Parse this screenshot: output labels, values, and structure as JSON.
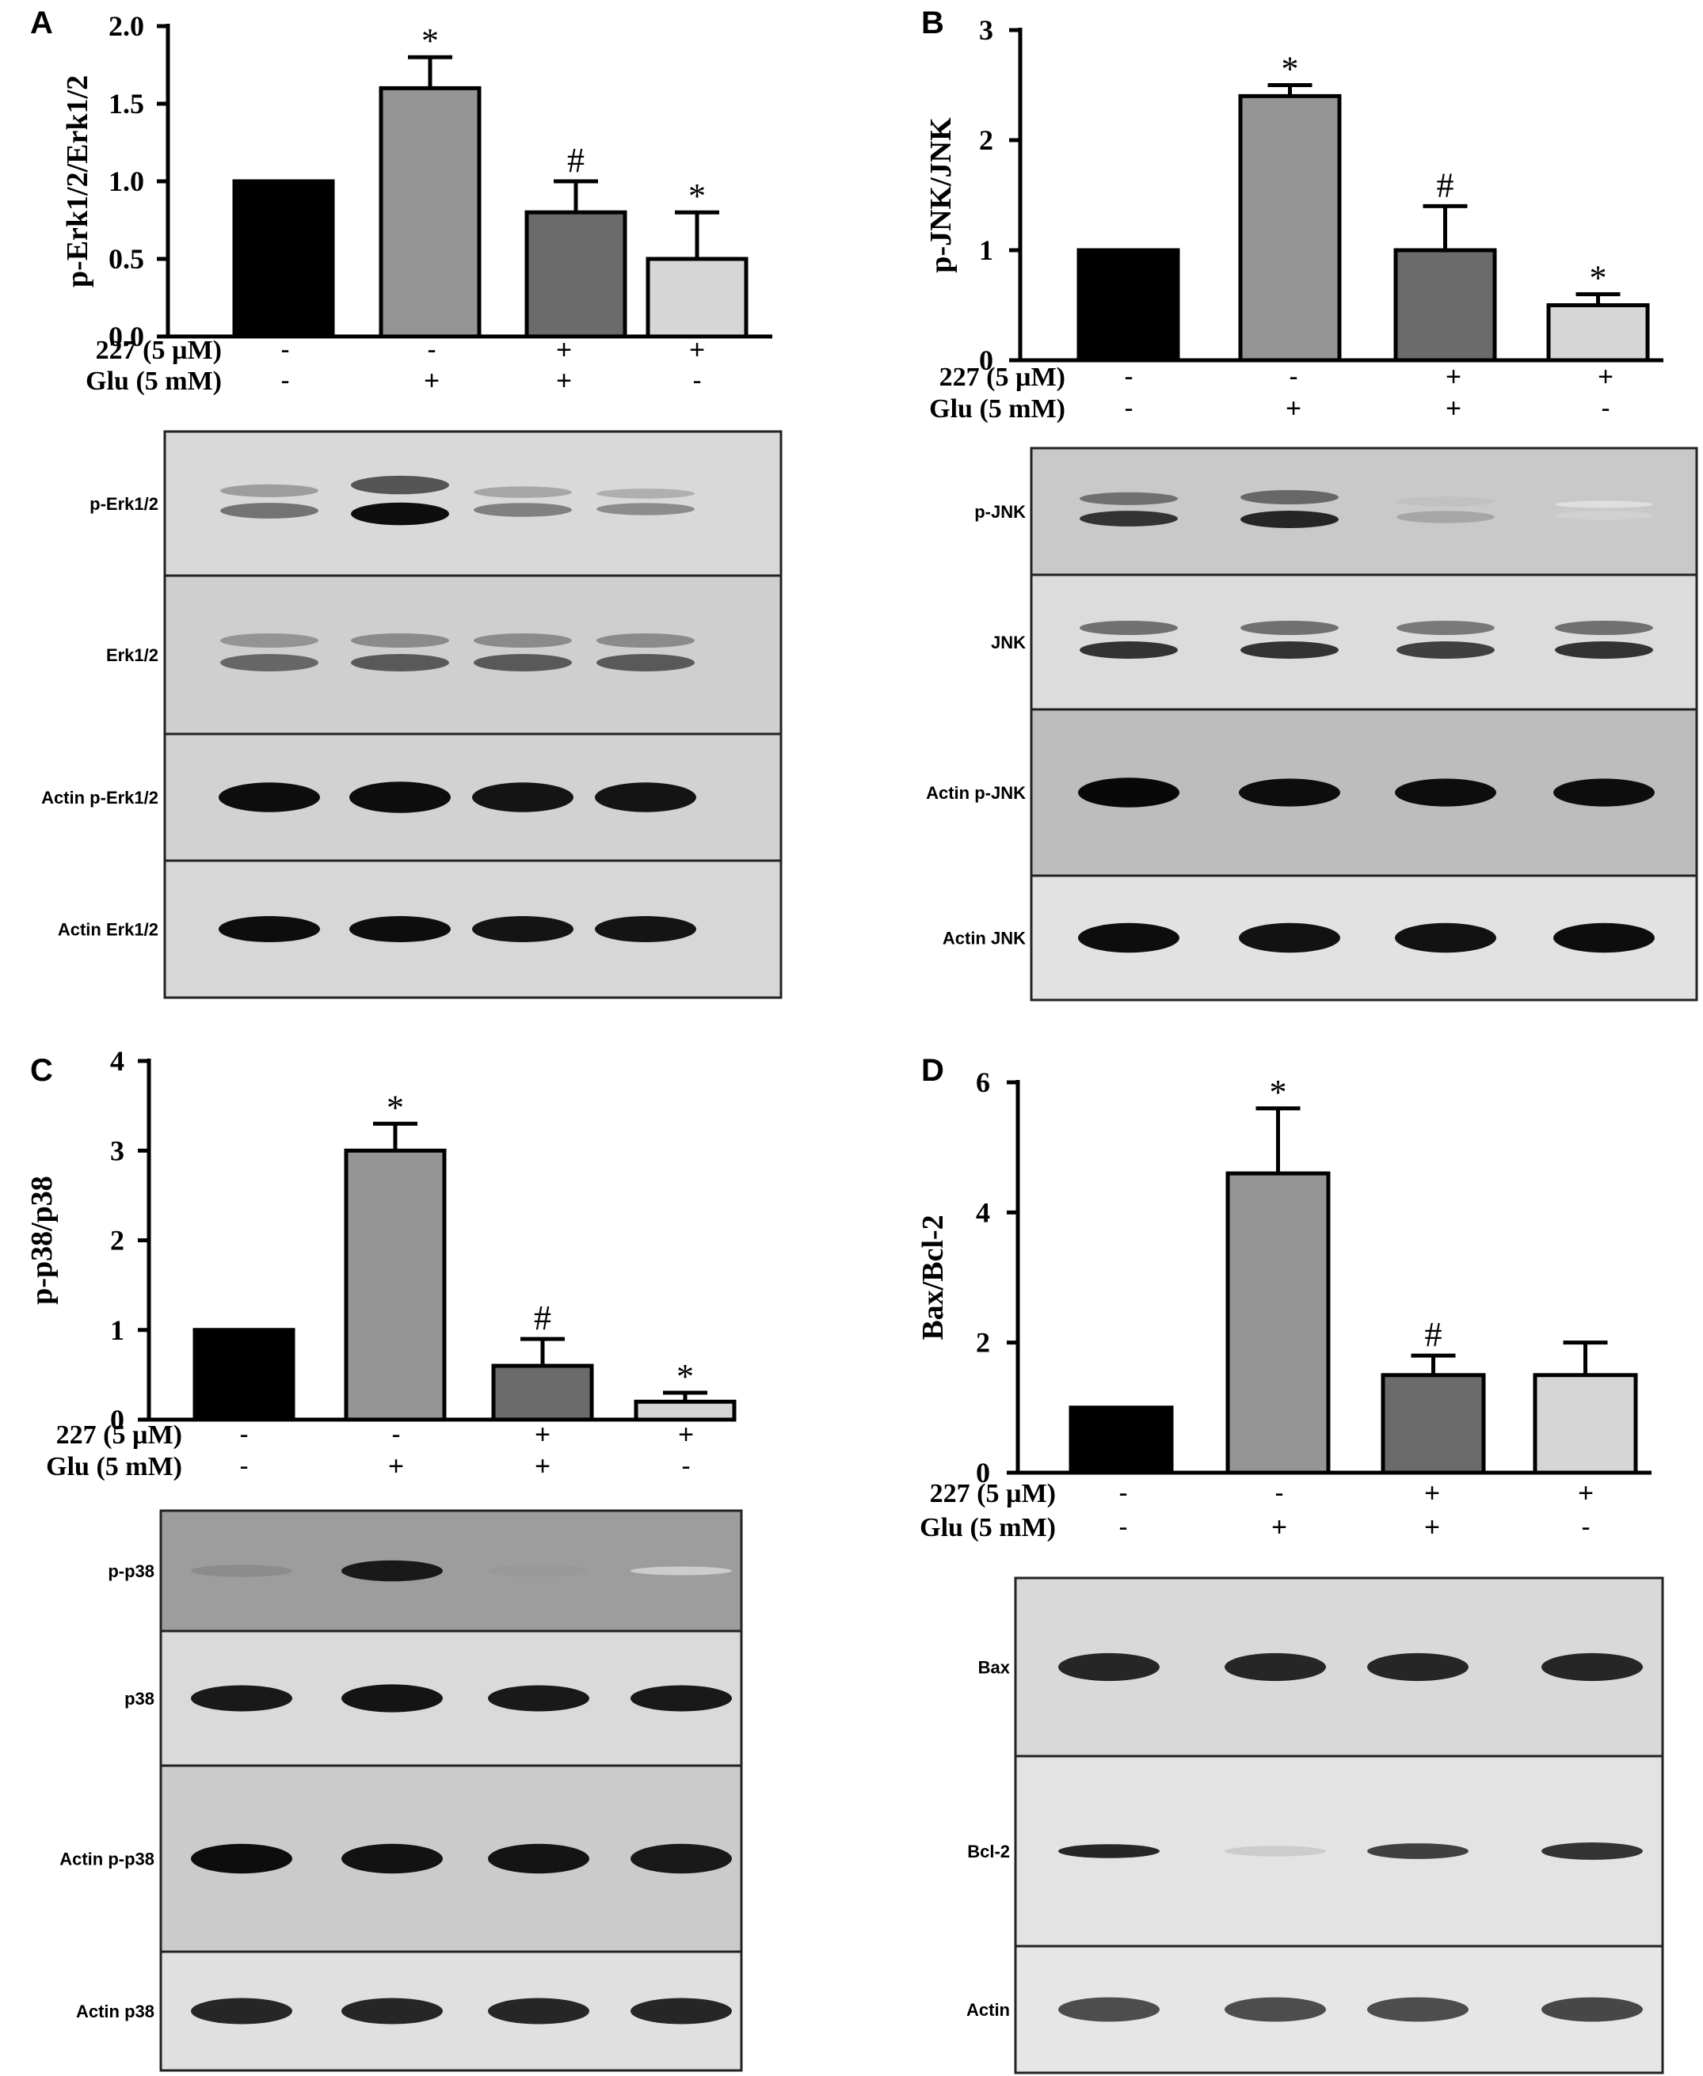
{
  "chart_data": [
    {
      "type": "bar",
      "panel": "A",
      "ylabel": "p-Erk1/2/Erk1/2",
      "ylim": [
        0,
        2.0
      ],
      "yticks": [
        "0.0",
        "0.5",
        "1.0",
        "1.5",
        "2.0"
      ],
      "values": [
        1.0,
        1.6,
        0.8,
        0.5
      ],
      "errors": [
        0,
        0.2,
        0.2,
        0.3
      ],
      "significance": [
        "",
        "*",
        "#",
        "*"
      ],
      "colors": [
        "#000000",
        "#959595",
        "#6b6b6b",
        "#d6d6d6"
      ],
      "conditions": [
        {
          "label": "227 (5 µM)",
          "signs": [
            "-",
            "-",
            "+",
            "+"
          ]
        },
        {
          "label": "Glu (5 mM)",
          "signs": [
            "-",
            "+",
            "+",
            "-"
          ]
        }
      ],
      "blots": [
        "p-Erk1/2",
        "Erk1/2",
        "Actin  p-Erk1/2",
        "Actin  Erk1/2"
      ]
    },
    {
      "type": "bar",
      "panel": "B",
      "ylabel": "p-JNK/JNK",
      "ylim": [
        0,
        3
      ],
      "yticks": [
        "0",
        "1",
        "2",
        "3"
      ],
      "values": [
        1.0,
        2.4,
        1.0,
        0.5
      ],
      "errors": [
        0,
        0.1,
        0.4,
        0.1
      ],
      "significance": [
        "",
        "*",
        "#",
        "*"
      ],
      "colors": [
        "#000000",
        "#959595",
        "#6b6b6b",
        "#d6d6d6"
      ],
      "conditions": [
        {
          "label": "227 (5 µM)",
          "signs": [
            "-",
            "-",
            "+",
            "+"
          ]
        },
        {
          "label": "Glu (5 mM)",
          "signs": [
            "-",
            "+",
            "+",
            "-"
          ]
        }
      ],
      "blots": [
        "p-JNK",
        "JNK",
        "Actin  p-JNK",
        "Actin  JNK"
      ]
    },
    {
      "type": "bar",
      "panel": "C",
      "ylabel": "p-p38/p38",
      "ylim": [
        0,
        4
      ],
      "yticks": [
        "0",
        "1",
        "2",
        "3",
        "4"
      ],
      "values": [
        1.0,
        3.0,
        0.6,
        0.2
      ],
      "errors": [
        0,
        0.3,
        0.3,
        0.1
      ],
      "significance": [
        "",
        "*",
        "#",
        "*"
      ],
      "colors": [
        "#000000",
        "#959595",
        "#6b6b6b",
        "#d6d6d6"
      ],
      "conditions": [
        {
          "label": "227 (5 µM)",
          "signs": [
            "-",
            "-",
            "+",
            "+"
          ]
        },
        {
          "label": "Glu (5 mM)",
          "signs": [
            "-",
            "+",
            "+",
            "-"
          ]
        }
      ],
      "blots": [
        "p-p38",
        "p38",
        "Actin  p-p38",
        "Actin  p38"
      ]
    },
    {
      "type": "bar",
      "panel": "D",
      "ylabel": "Bax/Bcl-2",
      "ylim": [
        0,
        6
      ],
      "yticks": [
        "0",
        "2",
        "4",
        "6"
      ],
      "values": [
        1.0,
        4.6,
        1.5,
        1.5
      ],
      "errors": [
        0,
        1.0,
        0.3,
        0.5
      ],
      "significance": [
        "",
        "*",
        "#",
        ""
      ],
      "colors": [
        "#000000",
        "#959595",
        "#6b6b6b",
        "#d6d6d6"
      ],
      "conditions": [
        {
          "label": "227 (5 µM)",
          "signs": [
            "-",
            "-",
            "+",
            "+"
          ]
        },
        {
          "label": "Glu (5 mM)",
          "signs": [
            "-",
            "+",
            "+",
            "-"
          ]
        }
      ],
      "blots": [
        "Bax",
        "Bcl-2",
        "Actin"
      ]
    }
  ]
}
